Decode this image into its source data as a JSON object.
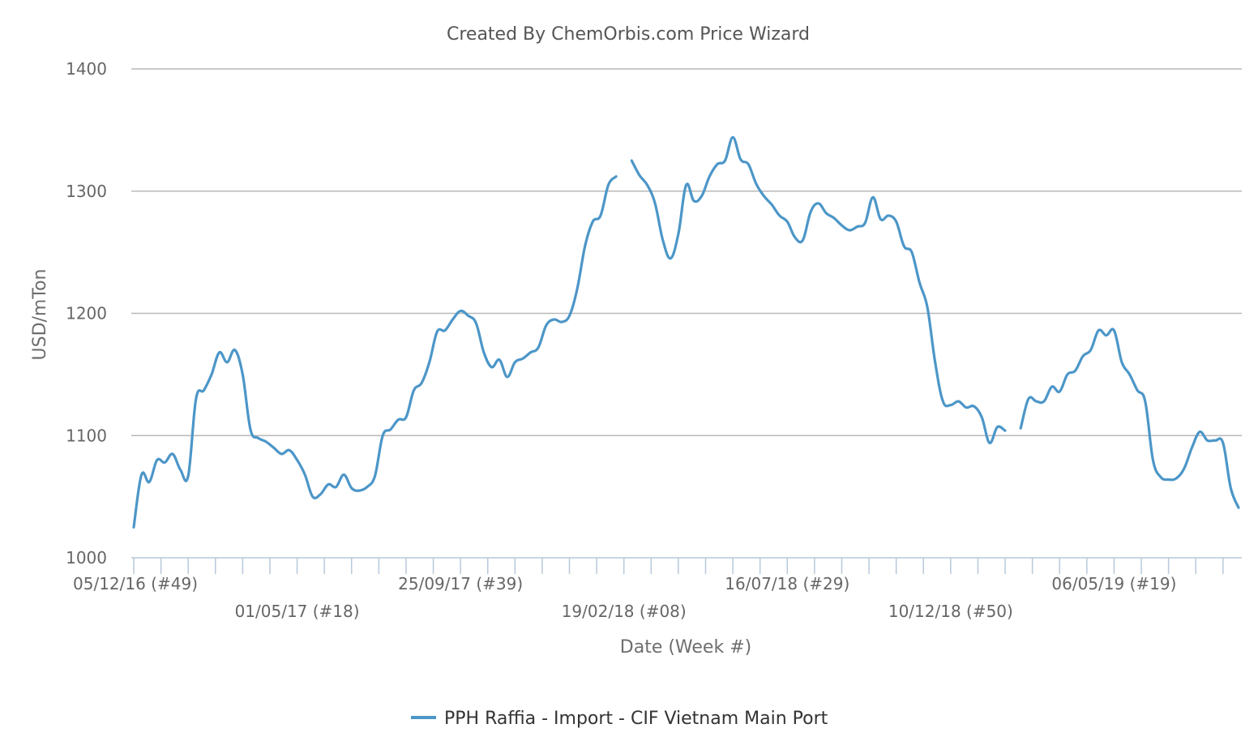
{
  "chart_data": {
    "type": "line",
    "title": "Created By ChemOrbis.com Price Wizard",
    "xlabel": "Date (Week #)",
    "ylabel": "USD/mTon",
    "ylim": [
      1000,
      1400
    ],
    "yticks": [
      1000,
      1100,
      1200,
      1300,
      1400
    ],
    "grid": true,
    "legend_position": "bottom",
    "week_start": "05/12/16",
    "week_count": 165,
    "x_tick_labels": [
      {
        "week": 0,
        "label": "05/12/16 (#49)",
        "row": 0
      },
      {
        "week": 21,
        "label": "01/05/17 (#18)",
        "row": 1
      },
      {
        "week": 42,
        "label": "25/09/17 (#39)",
        "row": 0
      },
      {
        "week": 63,
        "label": "19/02/18 (#08)",
        "row": 1
      },
      {
        "week": 84,
        "label": "16/07/18 (#29)",
        "row": 0
      },
      {
        "week": 105,
        "label": "10/12/18 (#50)",
        "row": 1
      },
      {
        "week": 126,
        "label": "06/05/19 (#19)",
        "row": 0
      }
    ],
    "series": [
      {
        "name": "PPH Raffia - Import - CIF Vietnam Main Port",
        "color": "#4c96c8",
        "points": [
          [
            0,
            1025
          ],
          [
            1,
            1068
          ],
          [
            2,
            1062
          ],
          [
            3,
            1080
          ],
          [
            4,
            1078
          ],
          [
            5,
            1085
          ],
          [
            6,
            1072
          ],
          [
            7,
            1067
          ],
          [
            8,
            1130
          ],
          [
            9,
            1137
          ],
          [
            10,
            1150
          ],
          [
            11,
            1168
          ],
          [
            12,
            1160
          ],
          [
            13,
            1170
          ],
          [
            14,
            1150
          ],
          [
            15,
            1105
          ],
          [
            16,
            1098
          ],
          [
            17,
            1095
          ],
          [
            18,
            1090
          ],
          [
            19,
            1085
          ],
          [
            20,
            1088
          ],
          [
            21,
            1080
          ],
          [
            22,
            1068
          ],
          [
            23,
            1050
          ],
          [
            24,
            1052
          ],
          [
            25,
            1060
          ],
          [
            26,
            1058
          ],
          [
            27,
            1068
          ],
          [
            28,
            1057
          ],
          [
            29,
            1055
          ],
          [
            30,
            1058
          ],
          [
            31,
            1067
          ],
          [
            32,
            1100
          ],
          [
            33,
            1105
          ],
          [
            34,
            1113
          ],
          [
            35,
            1115
          ],
          [
            36,
            1137
          ],
          [
            37,
            1143
          ],
          [
            38,
            1160
          ],
          [
            39,
            1185
          ],
          [
            40,
            1186
          ],
          [
            41,
            1195
          ],
          [
            42,
            1202
          ],
          [
            43,
            1198
          ],
          [
            44,
            1192
          ],
          [
            45,
            1168
          ],
          [
            46,
            1156
          ],
          [
            47,
            1162
          ],
          [
            48,
            1148
          ],
          [
            49,
            1160
          ],
          [
            50,
            1163
          ],
          [
            51,
            1168
          ],
          [
            52,
            1172
          ],
          [
            53,
            1190
          ],
          [
            54,
            1195
          ],
          [
            55,
            1193
          ],
          [
            56,
            1198
          ],
          [
            57,
            1220
          ],
          [
            58,
            1255
          ],
          [
            59,
            1275
          ],
          [
            60,
            1280
          ],
          [
            61,
            1305
          ],
          [
            62,
            1312
          ],
          [
            64,
            1325
          ],
          [
            65,
            1313
          ],
          [
            66,
            1305
          ],
          [
            67,
            1290
          ],
          [
            68,
            1260
          ],
          [
            69,
            1245
          ],
          [
            70,
            1265
          ],
          [
            71,
            1305
          ],
          [
            72,
            1292
          ],
          [
            73,
            1296
          ],
          [
            74,
            1312
          ],
          [
            75,
            1322
          ],
          [
            76,
            1325
          ],
          [
            77,
            1344
          ],
          [
            78,
            1326
          ],
          [
            79,
            1322
          ],
          [
            80,
            1306
          ],
          [
            81,
            1296
          ],
          [
            82,
            1289
          ],
          [
            83,
            1280
          ],
          [
            84,
            1275
          ],
          [
            85,
            1262
          ],
          [
            86,
            1260
          ],
          [
            87,
            1283
          ],
          [
            88,
            1290
          ],
          [
            89,
            1282
          ],
          [
            90,
            1278
          ],
          [
            91,
            1272
          ],
          [
            92,
            1268
          ],
          [
            93,
            1271
          ],
          [
            94,
            1274
          ],
          [
            95,
            1295
          ],
          [
            96,
            1277
          ],
          [
            97,
            1280
          ],
          [
            98,
            1275
          ],
          [
            99,
            1255
          ],
          [
            100,
            1250
          ],
          [
            101,
            1225
          ],
          [
            102,
            1205
          ],
          [
            103,
            1160
          ],
          [
            104,
            1128
          ],
          [
            105,
            1125
          ],
          [
            106,
            1128
          ],
          [
            107,
            1123
          ],
          [
            108,
            1124
          ],
          [
            109,
            1115
          ],
          [
            110,
            1094
          ],
          [
            111,
            1107
          ],
          [
            112,
            1104
          ],
          [
            114,
            1106
          ],
          [
            115,
            1130
          ],
          [
            116,
            1128
          ],
          [
            117,
            1128
          ],
          [
            118,
            1140
          ],
          [
            119,
            1136
          ],
          [
            120,
            1150
          ],
          [
            121,
            1153
          ],
          [
            122,
            1165
          ],
          [
            123,
            1170
          ],
          [
            124,
            1186
          ],
          [
            125,
            1182
          ],
          [
            126,
            1186
          ],
          [
            127,
            1160
          ],
          [
            128,
            1150
          ],
          [
            129,
            1137
          ],
          [
            130,
            1128
          ],
          [
            131,
            1080
          ],
          [
            132,
            1066
          ],
          [
            133,
            1064
          ],
          [
            134,
            1065
          ],
          [
            135,
            1073
          ],
          [
            136,
            1090
          ],
          [
            137,
            1103
          ],
          [
            138,
            1096
          ],
          [
            139,
            1096
          ],
          [
            140,
            1094
          ],
          [
            141,
            1057
          ],
          [
            142,
            1041
          ]
        ]
      }
    ]
  }
}
